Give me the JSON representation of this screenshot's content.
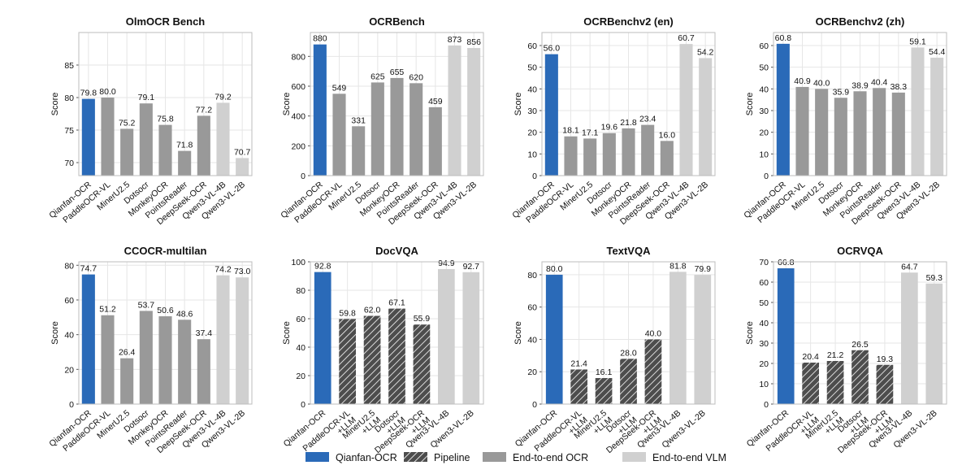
{
  "figure": {
    "ylabel": "Score"
  },
  "colors": {
    "qianfan": "#2a6ab8",
    "pipeline": "#4d4d4d",
    "e2e_ocr": "#999999",
    "e2e_vlm": "#d0d0d0",
    "grid": "#e6e6e6",
    "axis": "#bdbdbd"
  },
  "legend": [
    {
      "label": "Qianfan-OCR",
      "kind": "qianfan"
    },
    {
      "label": "Pipeline",
      "kind": "pipeline"
    },
    {
      "label": "End-to-end OCR",
      "kind": "e2e_ocr"
    },
    {
      "label": "End-to-end VLM",
      "kind": "e2e_vlm"
    }
  ],
  "chart_data": [
    {
      "type": "bar",
      "title": "OlmOCR Bench",
      "ylabel": "Score",
      "ylim": [
        68,
        90
      ],
      "yticks": [
        70,
        75,
        80,
        85
      ],
      "categories": [
        "Qianfan-OCR",
        "PaddleOCR-VL",
        "MinerU2.5",
        "Dotsocr",
        "MonkeyOCR",
        "PointsReader",
        "DeepSeek-OCR",
        "Qwen3-VL-4B",
        "Qwen3-VL-2B"
      ],
      "values": [
        79.8,
        80.0,
        75.2,
        79.1,
        75.8,
        71.8,
        77.2,
        79.2,
        70.7
      ],
      "labels": [
        "79.8",
        "80.0",
        "75.2",
        "79.1",
        "75.8",
        "71.8",
        "77.2",
        "79.2",
        "70.7"
      ],
      "kinds": [
        "qianfan",
        "e2e_ocr",
        "e2e_ocr",
        "e2e_ocr",
        "e2e_ocr",
        "e2e_ocr",
        "e2e_ocr",
        "e2e_vlm",
        "e2e_vlm"
      ]
    },
    {
      "type": "bar",
      "title": "OCRBench",
      "ylabel": "Score",
      "ylim": [
        0,
        960
      ],
      "yticks": [
        0,
        200,
        400,
        600,
        800
      ],
      "categories": [
        "Qianfan-OCR",
        "PaddleOCR-VL",
        "MinerU2.5",
        "Dotsocr",
        "MonkeyOCR",
        "PointsReader",
        "DeepSeek-OCR",
        "Qwen3-VL-4B",
        "Qwen3-VL-2B"
      ],
      "values": [
        880,
        549,
        331,
        625,
        655,
        620,
        459,
        873,
        856
      ],
      "labels": [
        "880",
        "549",
        "331",
        "625",
        "655",
        "620",
        "459",
        "873",
        "856"
      ],
      "kinds": [
        "qianfan",
        "e2e_ocr",
        "e2e_ocr",
        "e2e_ocr",
        "e2e_ocr",
        "e2e_ocr",
        "e2e_ocr",
        "e2e_vlm",
        "e2e_vlm"
      ]
    },
    {
      "type": "bar",
      "title": "OCRBenchv2 (en)",
      "ylabel": "Score",
      "ylim": [
        0,
        66
      ],
      "yticks": [
        0,
        10,
        20,
        30,
        40,
        50,
        60
      ],
      "categories": [
        "Qianfan-OCR",
        "PaddleOCR-VL",
        "MinerU2.5",
        "Dotsocr",
        "MonkeyOCR",
        "PointsReader",
        "DeepSeek-OCR",
        "Qwen3-VL-4B",
        "Qwen3-VL-2B"
      ],
      "values": [
        56.0,
        18.1,
        17.1,
        19.6,
        21.8,
        23.4,
        16.0,
        60.7,
        54.2
      ],
      "labels": [
        "56.0",
        "18.1",
        "17.1",
        "19.6",
        "21.8",
        "23.4",
        "16.0",
        "60.7",
        "54.2"
      ],
      "kinds": [
        "qianfan",
        "e2e_ocr",
        "e2e_ocr",
        "e2e_ocr",
        "e2e_ocr",
        "e2e_ocr",
        "e2e_ocr",
        "e2e_vlm",
        "e2e_vlm"
      ]
    },
    {
      "type": "bar",
      "title": "OCRBenchv2 (zh)",
      "ylabel": "Score",
      "ylim": [
        0,
        66
      ],
      "yticks": [
        0,
        10,
        20,
        30,
        40,
        50,
        60
      ],
      "categories": [
        "Qianfan-OCR",
        "PaddleOCR-VL",
        "MinerU2.5",
        "Dotsocr",
        "MonkeyOCR",
        "PointsReader",
        "DeepSeek-OCR",
        "Qwen3-VL-4B",
        "Qwen3-VL-2B"
      ],
      "values": [
        60.8,
        40.9,
        40.0,
        35.9,
        38.9,
        40.4,
        38.3,
        59.1,
        54.4
      ],
      "labels": [
        "60.8",
        "40.9",
        "40.0",
        "35.9",
        "38.9",
        "40.4",
        "38.3",
        "59.1",
        "54.4"
      ],
      "kinds": [
        "qianfan",
        "e2e_ocr",
        "e2e_ocr",
        "e2e_ocr",
        "e2e_ocr",
        "e2e_ocr",
        "e2e_ocr",
        "e2e_vlm",
        "e2e_vlm"
      ]
    },
    {
      "type": "bar",
      "title": "CCOCR-multilan",
      "ylabel": "Score",
      "ylim": [
        0,
        82
      ],
      "yticks": [
        0,
        20,
        40,
        60,
        80
      ],
      "categories": [
        "Qianfan-OCR",
        "PaddleOCR-VL",
        "MinerU2.5",
        "Dotsocr",
        "MonkeyOCR",
        "PointsReader",
        "DeepSeek-OCR",
        "Qwen3-VL-4B",
        "Qwen3-VL-2B"
      ],
      "values": [
        74.7,
        51.2,
        26.4,
        53.7,
        50.6,
        48.6,
        37.4,
        74.2,
        73.0
      ],
      "labels": [
        "74.7",
        "51.2",
        "26.4",
        "53.7",
        "50.6",
        "48.6",
        "37.4",
        "74.2",
        "73.0"
      ],
      "kinds": [
        "qianfan",
        "e2e_ocr",
        "e2e_ocr",
        "e2e_ocr",
        "e2e_ocr",
        "e2e_ocr",
        "e2e_ocr",
        "e2e_vlm",
        "e2e_vlm"
      ]
    },
    {
      "type": "bar",
      "title": "DocVQA",
      "ylabel": "Score",
      "ylim": [
        0,
        100
      ],
      "yticks": [
        0,
        20,
        40,
        60,
        80,
        100
      ],
      "categories": [
        "Qianfan-OCR",
        "PaddleOCR-VL\n+LLM",
        "MinerU2.5\n+LLM",
        "Dotsocr\n+LLM",
        "DeepSeek-OCR\n+LLM",
        "Qwen3-VL-4B",
        "Qwen3-VL-2B"
      ],
      "values": [
        92.8,
        59.8,
        62.0,
        67.1,
        55.9,
        94.9,
        92.7
      ],
      "labels": [
        "92.8",
        "59.8",
        "62.0",
        "67.1",
        "55.9",
        "94.9",
        "92.7"
      ],
      "kinds": [
        "qianfan",
        "pipeline",
        "pipeline",
        "pipeline",
        "pipeline",
        "e2e_vlm",
        "e2e_vlm"
      ]
    },
    {
      "type": "bar",
      "title": "TextVQA",
      "ylabel": "Score",
      "ylim": [
        0,
        88
      ],
      "yticks": [
        0,
        20,
        40,
        60,
        80
      ],
      "categories": [
        "Qianfan-OCR",
        "PaddleOCR-VL\n+LLM",
        "MinerU2.5\n+LLM",
        "Dotsocr\n+LLM",
        "DeepSeek-OCR\n+LLM",
        "Qwen3-VL-4B",
        "Qwen3-VL-2B"
      ],
      "values": [
        80.0,
        21.4,
        16.1,
        28.0,
        40.0,
        81.8,
        79.9
      ],
      "labels": [
        "80.0",
        "21.4",
        "16.1",
        "28.0",
        "40.0",
        "81.8",
        "79.9"
      ],
      "kinds": [
        "qianfan",
        "pipeline",
        "pipeline",
        "pipeline",
        "pipeline",
        "e2e_vlm",
        "e2e_vlm"
      ]
    },
    {
      "type": "bar",
      "title": "OCRVQA",
      "ylabel": "Score",
      "ylim": [
        0,
        70
      ],
      "yticks": [
        0,
        10,
        20,
        30,
        40,
        50,
        60,
        70
      ],
      "categories": [
        "Qianfan-OCR",
        "PaddleOCR-VL\n+LLM",
        "MinerU2.5\n+LLM",
        "Dotsocr\n+LLM",
        "DeepSeek-OCR\n+LLM",
        "Qwen3-VL-4B",
        "Qwen3-VL-2B"
      ],
      "values": [
        66.8,
        20.4,
        21.2,
        26.5,
        19.3,
        64.7,
        59.3
      ],
      "labels": [
        "66.8",
        "20.4",
        "21.2",
        "26.5",
        "19.3",
        "64.7",
        "59.3"
      ],
      "kinds": [
        "qianfan",
        "pipeline",
        "pipeline",
        "pipeline",
        "pipeline",
        "e2e_vlm",
        "e2e_vlm"
      ]
    }
  ]
}
